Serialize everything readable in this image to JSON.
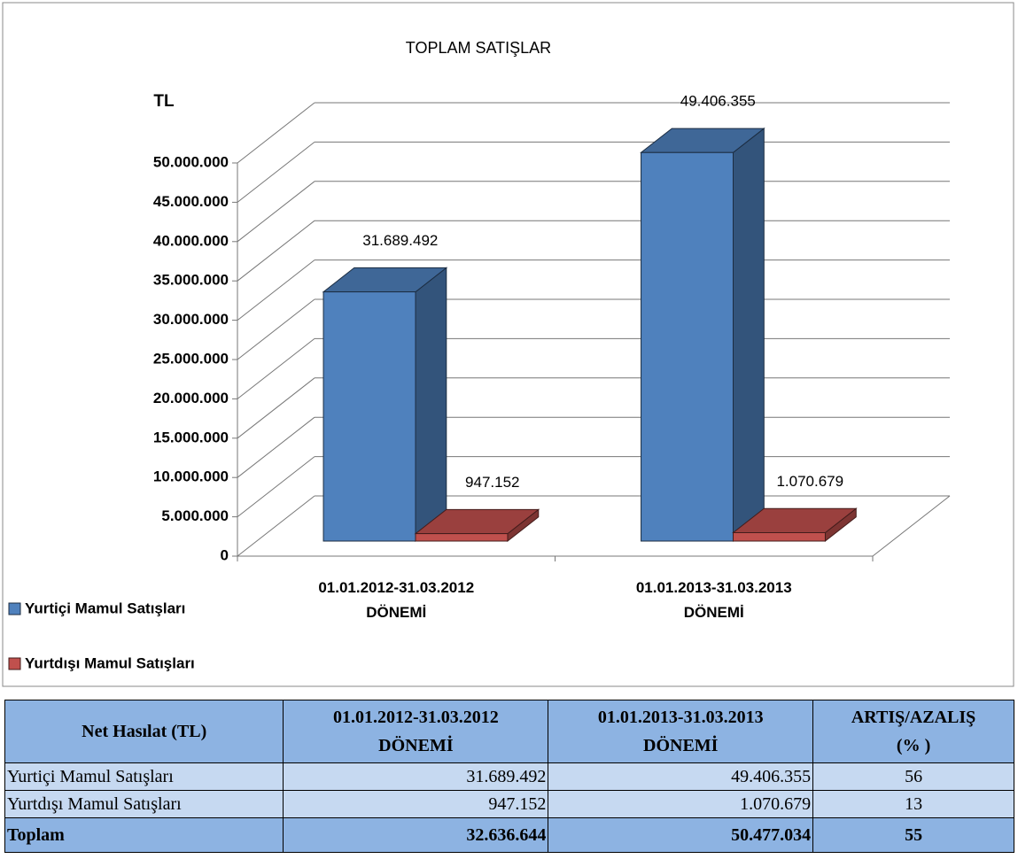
{
  "chart_data": {
    "type": "bar3d",
    "title": "TOPLAM SATIŞLAR",
    "y_label": "TL",
    "categories": [
      "01.01.2012-31.03.2012\nDÖNEMİ",
      "01.01.2013-31.03.2013\nDÖNEMİ"
    ],
    "series": [
      {
        "name": "Yurtiçi Mamul Satışları",
        "color": "#4f81bd",
        "values": [
          31689492,
          49406355
        ],
        "value_labels": [
          "31.689.492",
          "49.406.355"
        ]
      },
      {
        "name": "Yurtdışı Mamul Satışları",
        "color": "#c0504d",
        "values": [
          947152,
          1070679
        ],
        "value_labels": [
          "947.152",
          "1.070.679"
        ]
      }
    ],
    "ylim": [
      0,
      50000000
    ],
    "yticks": [
      0,
      {
        "value": 5000000,
        "label": "5.000.000"
      },
      {
        "value": 10000000,
        "label": "10.000.000"
      },
      {
        "value": 15000000,
        "label": "15.000.000"
      },
      {
        "value": 20000000,
        "label": "20.000.000"
      },
      {
        "value": 25000000,
        "label": "25.000.000"
      },
      {
        "value": 30000000,
        "label": "30.000.000"
      },
      {
        "value": 35000000,
        "label": "35.000.000"
      },
      {
        "value": 40000000,
        "label": "40.000.000"
      },
      {
        "value": 45000000,
        "label": "45.000.000"
      },
      {
        "value": 50000000,
        "label": "50.000.000"
      }
    ],
    "grid": true,
    "legend": "bottom-left"
  },
  "table": {
    "header": [
      "Net Hasılat (TL)",
      "01.01.2012-31.03.2012\nDÖNEMİ",
      "01.01.2013-31.03.2013\nDÖNEMİ",
      "ARTIŞ/AZALIŞ\n(% )"
    ],
    "rows": [
      [
        "Yurtiçi Mamul Satışları",
        "31.689.492",
        "49.406.355",
        "56"
      ],
      [
        "Yurtdışı Mamul Satışları",
        "947.152",
        "1.070.679",
        "13"
      ],
      [
        "Toplam",
        "32.636.644",
        "50.477.034",
        "55"
      ]
    ]
  }
}
